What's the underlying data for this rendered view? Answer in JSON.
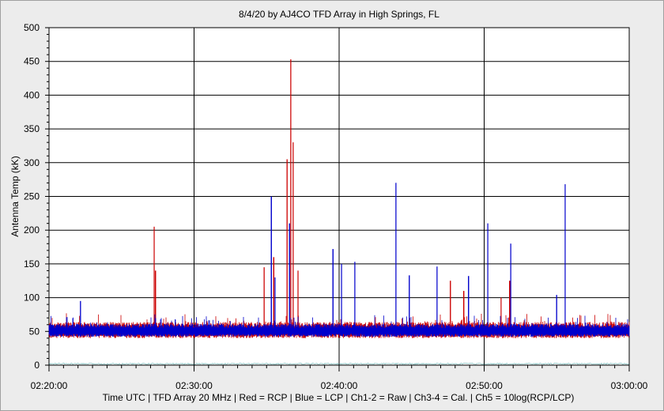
{
  "chart_data": {
    "type": "line",
    "title": "8/4/20  by  AJ4CO TFD Array  in  High Springs, FL",
    "ylabel": "Antenna Temp (kK)",
    "xlabel": "Time UTC | TFD Array 20 MHz | Red = RCP | Blue = LCP | Ch1-2 = Raw | Ch3-4 = Cal. | Ch5 = 10log(RCP/LCP)",
    "ylim": [
      0,
      500
    ],
    "y_ticks": [
      "0",
      "50",
      "100",
      "150",
      "200",
      "250",
      "300",
      "350",
      "400",
      "450",
      "500"
    ],
    "x_range": [
      "02:20:00",
      "03:00:00"
    ],
    "x_ticks": [
      "02:20:00",
      "02:30:00",
      "02:40:00",
      "02:50:00",
      "03:00:00"
    ],
    "grid": true,
    "baseline": 50,
    "series": [
      {
        "name": "Red = RCP",
        "color": "#cc0000",
        "spikes": [
          {
            "time": "02:27:15",
            "value": 205
          },
          {
            "time": "02:27:20",
            "value": 140
          },
          {
            "time": "02:34:50",
            "value": 145
          },
          {
            "time": "02:35:30",
            "value": 160
          },
          {
            "time": "02:36:25",
            "value": 305
          },
          {
            "time": "02:36:40",
            "value": 453
          },
          {
            "time": "02:36:50",
            "value": 330
          },
          {
            "time": "02:37:10",
            "value": 140
          },
          {
            "time": "02:47:40",
            "value": 125
          },
          {
            "time": "02:48:35",
            "value": 110
          },
          {
            "time": "02:51:10",
            "value": 100
          },
          {
            "time": "02:51:45",
            "value": 125
          }
        ]
      },
      {
        "name": "Blue = LCP",
        "color": "#0000cc",
        "spikes": [
          {
            "time": "02:22:10",
            "value": 95
          },
          {
            "time": "02:35:20",
            "value": 250
          },
          {
            "time": "02:35:35",
            "value": 130
          },
          {
            "time": "02:36:35",
            "value": 210
          },
          {
            "time": "02:39:35",
            "value": 172
          },
          {
            "time": "02:40:10",
            "value": 150
          },
          {
            "time": "02:41:05",
            "value": 153
          },
          {
            "time": "02:43:55",
            "value": 270
          },
          {
            "time": "02:44:50",
            "value": 133
          },
          {
            "time": "02:46:45",
            "value": 146
          },
          {
            "time": "02:48:55",
            "value": 132
          },
          {
            "time": "02:50:15",
            "value": 210
          },
          {
            "time": "02:51:50",
            "value": 180
          },
          {
            "time": "02:55:00",
            "value": 104
          },
          {
            "time": "02:55:35",
            "value": 268
          }
        ]
      },
      {
        "name": "Ch5",
        "color": "#008080",
        "level": 2
      }
    ]
  }
}
